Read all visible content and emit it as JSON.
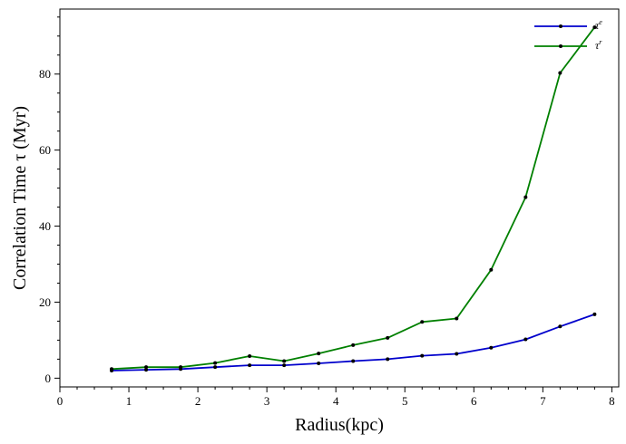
{
  "chart_data": {
    "type": "line",
    "xlabel": "Radius(kpc)",
    "ylabel": "Correlation Time τ (Myr)",
    "xlim": [
      0,
      8.1
    ],
    "ylim": [
      -2.3,
      97.1
    ],
    "xticks": [
      "0",
      "1",
      "2",
      "3",
      "4",
      "5",
      "6",
      "7",
      "8"
    ],
    "yticks": [
      "0",
      "20",
      "40",
      "60",
      "80"
    ],
    "grid": false,
    "legend_position": "top-right",
    "series": [
      {
        "name": "τe",
        "name_base": "τ",
        "name_sup": "e",
        "color": "#0000cc",
        "x": [
          0.75,
          1.25,
          1.75,
          2.25,
          2.75,
          3.25,
          3.75,
          4.25,
          4.75,
          5.25,
          5.75,
          6.25,
          6.75,
          7.25,
          7.75
        ],
        "y": [
          2.0,
          2.2,
          2.4,
          2.9,
          3.4,
          3.4,
          3.9,
          4.5,
          5.0,
          5.9,
          6.4,
          8.0,
          10.2,
          13.6,
          16.8
        ]
      },
      {
        "name": "τr",
        "name_base": "τ",
        "name_sup": "r",
        "color": "#008000",
        "x": [
          0.75,
          1.25,
          1.75,
          2.25,
          2.75,
          3.25,
          3.75,
          4.25,
          4.75,
          5.25,
          5.75,
          6.25,
          6.75,
          7.25,
          7.75
        ],
        "y": [
          2.4,
          2.9,
          2.9,
          4.0,
          5.8,
          4.5,
          6.5,
          8.7,
          10.6,
          14.8,
          15.7,
          28.5,
          47.6,
          80.3,
          92.3
        ]
      }
    ]
  }
}
